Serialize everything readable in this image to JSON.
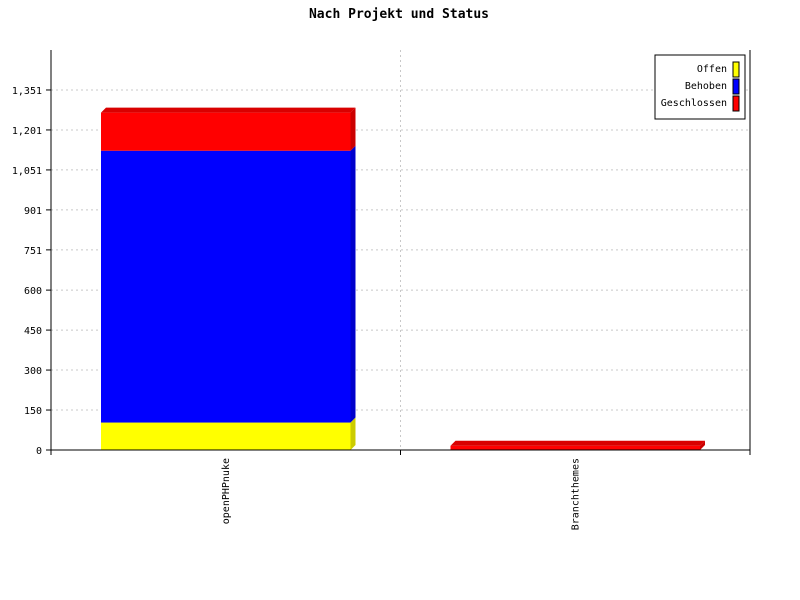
{
  "chart_data": {
    "type": "bar",
    "stacked": true,
    "title": "Nach Projekt und Status",
    "xlabel": "",
    "ylabel": "",
    "categories": [
      "openPHPnuke",
      "Branchthemes"
    ],
    "series": [
      {
        "name": "Offen",
        "color": "#ffff00",
        "values": [
          103,
          0
        ]
      },
      {
        "name": "Behoben",
        "color": "#0000ff",
        "values": [
          1020,
          0
        ]
      },
      {
        "name": "Geschlossen",
        "color": "#ff0000",
        "values": [
          143,
          16
        ]
      }
    ],
    "yticks": [
      0,
      150,
      300,
      450,
      600,
      751,
      901,
      1051,
      1201,
      1351
    ],
    "ytick_labels": [
      "0",
      "150",
      "300",
      "450",
      "600",
      "751",
      "901",
      "1,051",
      "1,201",
      "1,351"
    ],
    "ylim": [
      0,
      1501
    ],
    "grid": true,
    "legend_position": "top-right"
  }
}
